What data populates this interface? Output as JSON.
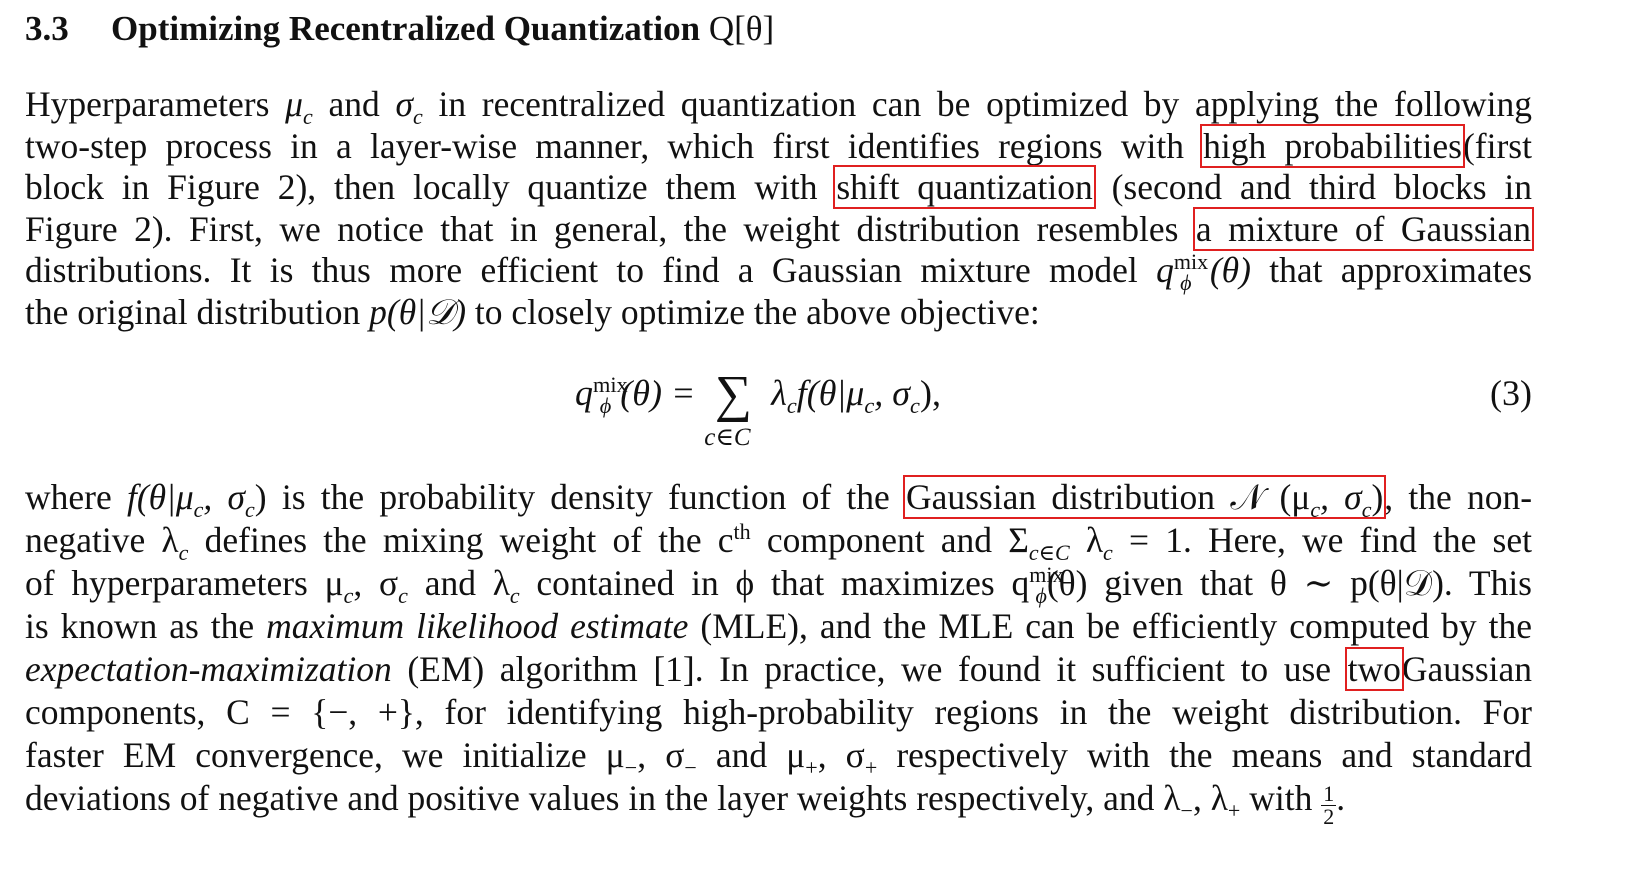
{
  "heading": {
    "number": "3.3",
    "title": "Optimizing Recentralized Quantization",
    "symbol": "Q[θ]"
  },
  "colors": {
    "highlight_box": "#e02020",
    "text": "#111111"
  },
  "paragraph1": {
    "l1a": "Hyperparameters",
    "l1_mu": "μ",
    "l1_c1": "c",
    "l1b": "and",
    "l1_sigma": "σ",
    "l1_c2": "c",
    "l1c": "in recentralized quantization can be optimized by applying the following",
    "l2a": "two-step process in a layer-wise manner, which first identifies regions with",
    "l2_box": "high probabilities",
    "l2b": "(first",
    "l3a": "block in Figure 2), then locally quantize them with",
    "l3_box": "shift quantization",
    "l3b": "(second and third blocks in",
    "l4a": "Figure 2). First, we notice that in general, the weight distribution resembles",
    "l4_box": "a mixture of Gaussian",
    "l5a": "distributions. It is thus more efficient to find a Gaussian mixture model",
    "l5_q": "q",
    "l5_sup": "mix",
    "l5_sub": "ϕ",
    "l5_theta": "(θ)",
    "l5b": "that approximates",
    "l6a": "the original distribution",
    "l6_p": "p(θ|𝒟)",
    "l6b": "to closely optimize the above objective:"
  },
  "equation": {
    "q": "q",
    "sup": "mix",
    "sub": "ϕ",
    "lhs_arg": "(θ) =",
    "sum": "∑",
    "sum_sub": "c∈C",
    "rhs": "λ",
    "rhs_c": "c",
    "rhs_rest": "f(θ|μ",
    "rhs_c2": "c",
    "rhs_mid": ", σ",
    "rhs_c3": "c",
    "rhs_end": "),",
    "number": "(3)"
  },
  "paragraph2": {
    "l1a": "where",
    "l1_f": "f(θ|μ",
    "l1_c1": "c",
    "l1_f2": ", σ",
    "l1_c2": "c",
    "l1_f3": ")",
    "l1b": "is the probability density function of the",
    "l1_box": "Gaussian distribution 𝒩 (μ",
    "l1_box_c1": "c",
    "l1_box_mid": ", σ",
    "l1_box_c2": "c",
    "l1_box_end": ")",
    "l1c": ", the non-",
    "l2a": "negative λ",
    "l2_c": "c",
    "l2b": "defines the mixing weight of the c",
    "l2_th": "th",
    "l2c": "component and Σ",
    "l2_sub": "c∈C",
    "l2d": "λ",
    "l2_c2": "c",
    "l2e": "= 1. Here, we find the set",
    "l3a": "of hyperparameters μ",
    "l3_c1": "c",
    "l3b": ", σ",
    "l3_c2": "c",
    "l3c": "and λ",
    "l3_c3": "c",
    "l3d": "contained in ϕ that maximizes q",
    "l3_sup": "mix",
    "l3_sub": "ϕ",
    "l3e": "(θ) given that θ ∼ p(θ|𝒟). This",
    "l4a": "is known as the",
    "l4_it": "maximum likelihood estimate",
    "l4b": "(MLE), and the MLE can be efficiently computed by the",
    "l5_it": "expectation-maximization",
    "l5a": "(EM) algorithm [1]. In practice, we found it sufficient to use",
    "l5_box": "two",
    "l5b": "Gaussian",
    "l6": "components, C = {−, +}, for identifying high-probability regions in the weight distribution. For",
    "l7a": "faster EM convergence, we initialize μ",
    "l7_s1": "−",
    "l7b": ", σ",
    "l7_s2": "−",
    "l7c": "and μ",
    "l7_s3": "+",
    "l7d": ", σ",
    "l7_s4": "+",
    "l7e": "respectively with the means and standard",
    "l8a": "deviations of negative and positive values in the layer weights respectively, and λ",
    "l8_s1": "−",
    "l8b": ", λ",
    "l8_s2": "+",
    "l8c": "with",
    "frac_num": "1",
    "frac_den": "2",
    "l8d": "."
  }
}
